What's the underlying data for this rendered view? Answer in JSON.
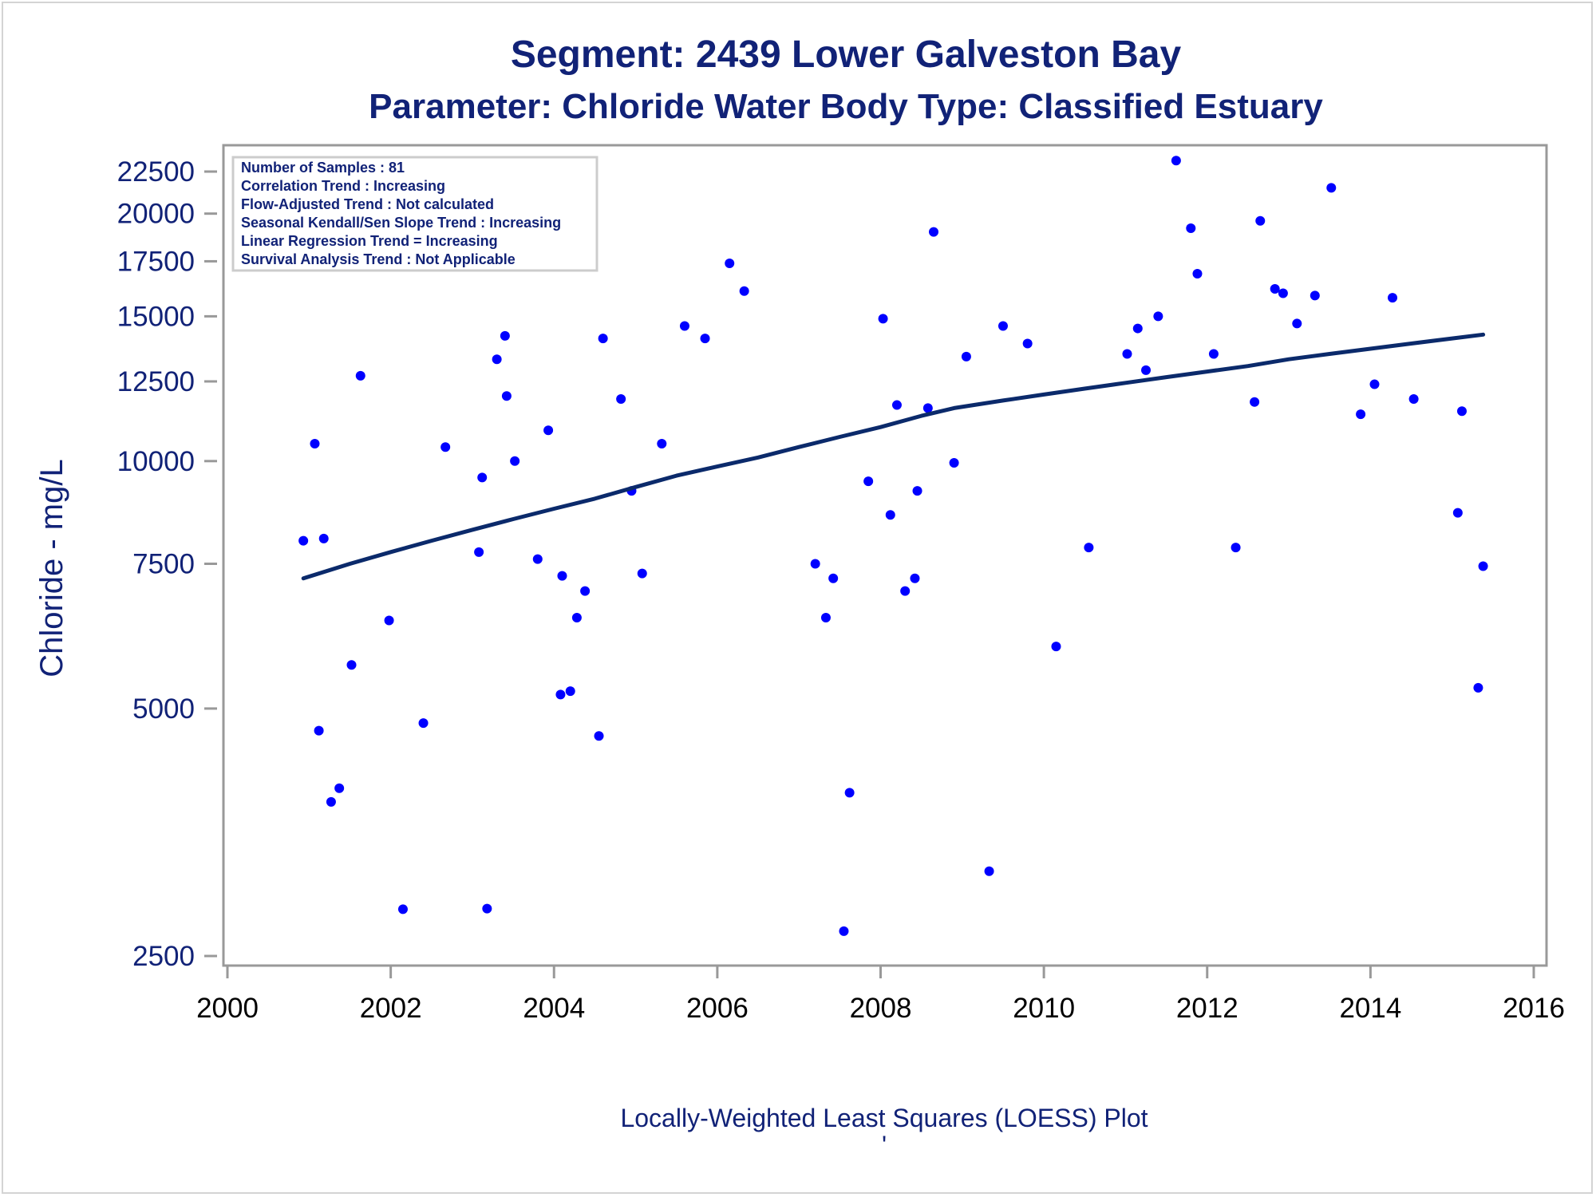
{
  "chart_data": {
    "type": "scatter",
    "title": "Segment: 2439  Lower Galveston Bay",
    "subtitle": "Parameter: Chloride   Water Body Type: Classified Estuary",
    "xlabel": "",
    "ylabel": "Chloride - mg/L",
    "footnote": "Locally-Weighted Least Squares (LOESS) Plot",
    "footnote_mark": "'",
    "yscale": "log",
    "xlim": [
      2000,
      2016
    ],
    "ylim": [
      2500,
      23500
    ],
    "x_ticks": [
      2000,
      2002,
      2004,
      2006,
      2008,
      2010,
      2012,
      2014,
      2016
    ],
    "x_tick_labels": [
      "2000",
      "2002",
      "2004",
      "2006",
      "2008",
      "2010",
      "2012",
      "2014",
      "2016"
    ],
    "y_ticks": [
      2500,
      5000,
      7500,
      10000,
      12500,
      15000,
      17500,
      20000,
      22500
    ],
    "y_tick_labels": [
      "2500",
      "5000",
      "7500",
      "10000",
      "12500",
      "15000",
      "17500",
      "20000",
      "22500"
    ],
    "grid": false,
    "legend_position": "top-left",
    "info_box": [
      "Number of Samples : 81",
      "Correlation Trend : Increasing",
      "Flow-Adjusted Trend : Not calculated",
      "Seasonal Kendall/Sen Slope Trend : Increasing",
      "Linear Regression Trend = Increasing",
      "Survival Analysis Trend : Not Applicable"
    ],
    "colors": {
      "points": "#0000ff",
      "trend_line": "#0b2a6b",
      "text": "#112277",
      "axis": "#999999"
    },
    "series": [
      {
        "kind": "scatter",
        "points": [
          [
            2000.93,
            8000
          ],
          [
            2001.07,
            10500
          ],
          [
            2001.12,
            4700
          ],
          [
            2001.18,
            8050
          ],
          [
            2001.27,
            3850
          ],
          [
            2001.37,
            4000
          ],
          [
            2001.52,
            5650
          ],
          [
            2001.63,
            12700
          ],
          [
            2001.98,
            6400
          ],
          [
            2002.15,
            2850
          ],
          [
            2002.4,
            4800
          ],
          [
            2002.67,
            10400
          ],
          [
            2003.08,
            7750
          ],
          [
            2003.12,
            9550
          ],
          [
            2003.3,
            13300
          ],
          [
            2003.18,
            2855
          ],
          [
            2003.4,
            14200
          ],
          [
            2003.42,
            12000
          ],
          [
            2003.52,
            10000
          ],
          [
            2003.8,
            7600
          ],
          [
            2003.93,
            10900
          ],
          [
            2004.08,
            5200
          ],
          [
            2004.1,
            7250
          ],
          [
            2004.2,
            5250
          ],
          [
            2004.28,
            6450
          ],
          [
            2004.38,
            6950
          ],
          [
            2004.55,
            4630
          ],
          [
            2004.6,
            14100
          ],
          [
            2004.82,
            11900
          ],
          [
            2004.95,
            9200
          ],
          [
            2005.08,
            7300
          ],
          [
            2005.32,
            10500
          ],
          [
            2005.6,
            14600
          ],
          [
            2005.85,
            14100
          ],
          [
            2006.15,
            17400
          ],
          [
            2006.33,
            16100
          ],
          [
            2007.2,
            7500
          ],
          [
            2007.33,
            6450
          ],
          [
            2007.42,
            7200
          ],
          [
            2007.55,
            2680
          ],
          [
            2007.62,
            3950
          ],
          [
            2007.85,
            9450
          ],
          [
            2008.03,
            14900
          ],
          [
            2008.12,
            8600
          ],
          [
            2008.2,
            11700
          ],
          [
            2008.3,
            6950
          ],
          [
            2008.42,
            7200
          ],
          [
            2008.45,
            9200
          ],
          [
            2008.58,
            11600
          ],
          [
            2008.65,
            19000
          ],
          [
            2008.9,
            9950
          ],
          [
            2009.05,
            13400
          ],
          [
            2009.33,
            3170
          ],
          [
            2009.5,
            14600
          ],
          [
            2009.8,
            13900
          ],
          [
            2010.15,
            5950
          ],
          [
            2010.55,
            7850
          ],
          [
            2011.02,
            13500
          ],
          [
            2011.15,
            14500
          ],
          [
            2011.25,
            12900
          ],
          [
            2011.4,
            15000
          ],
          [
            2011.62,
            23200
          ],
          [
            2011.8,
            19200
          ],
          [
            2011.88,
            16900
          ],
          [
            2012.08,
            13500
          ],
          [
            2012.35,
            7850
          ],
          [
            2012.58,
            11800
          ],
          [
            2012.65,
            19600
          ],
          [
            2012.83,
            16200
          ],
          [
            2012.93,
            16000
          ],
          [
            2013.1,
            14700
          ],
          [
            2013.32,
            15900
          ],
          [
            2013.52,
            21500
          ],
          [
            2013.88,
            11400
          ],
          [
            2014.05,
            12400
          ],
          [
            2014.27,
            15800
          ],
          [
            2014.53,
            11900
          ],
          [
            2015.07,
            8650
          ],
          [
            2015.12,
            11500
          ],
          [
            2015.32,
            5300
          ],
          [
            2015.38,
            7450
          ]
        ]
      },
      {
        "kind": "line",
        "points": [
          [
            2000.93,
            7200
          ],
          [
            2001.5,
            7500
          ],
          [
            2002.0,
            7750
          ],
          [
            2002.5,
            8000
          ],
          [
            2003.0,
            8250
          ],
          [
            2003.5,
            8500
          ],
          [
            2004.0,
            8750
          ],
          [
            2004.5,
            9000
          ],
          [
            2005.0,
            9300
          ],
          [
            2005.5,
            9600
          ],
          [
            2006.0,
            9850
          ],
          [
            2006.5,
            10100
          ],
          [
            2007.0,
            10400
          ],
          [
            2007.5,
            10700
          ],
          [
            2008.0,
            11000
          ],
          [
            2008.5,
            11350
          ],
          [
            2008.9,
            11600
          ],
          [
            2009.5,
            11850
          ],
          [
            2010.0,
            12050
          ],
          [
            2010.5,
            12250
          ],
          [
            2011.0,
            12450
          ],
          [
            2011.5,
            12650
          ],
          [
            2012.0,
            12850
          ],
          [
            2012.5,
            13050
          ],
          [
            2013.0,
            13300
          ],
          [
            2013.5,
            13500
          ],
          [
            2014.0,
            13700
          ],
          [
            2014.5,
            13900
          ],
          [
            2015.0,
            14100
          ],
          [
            2015.38,
            14250
          ]
        ]
      }
    ]
  }
}
